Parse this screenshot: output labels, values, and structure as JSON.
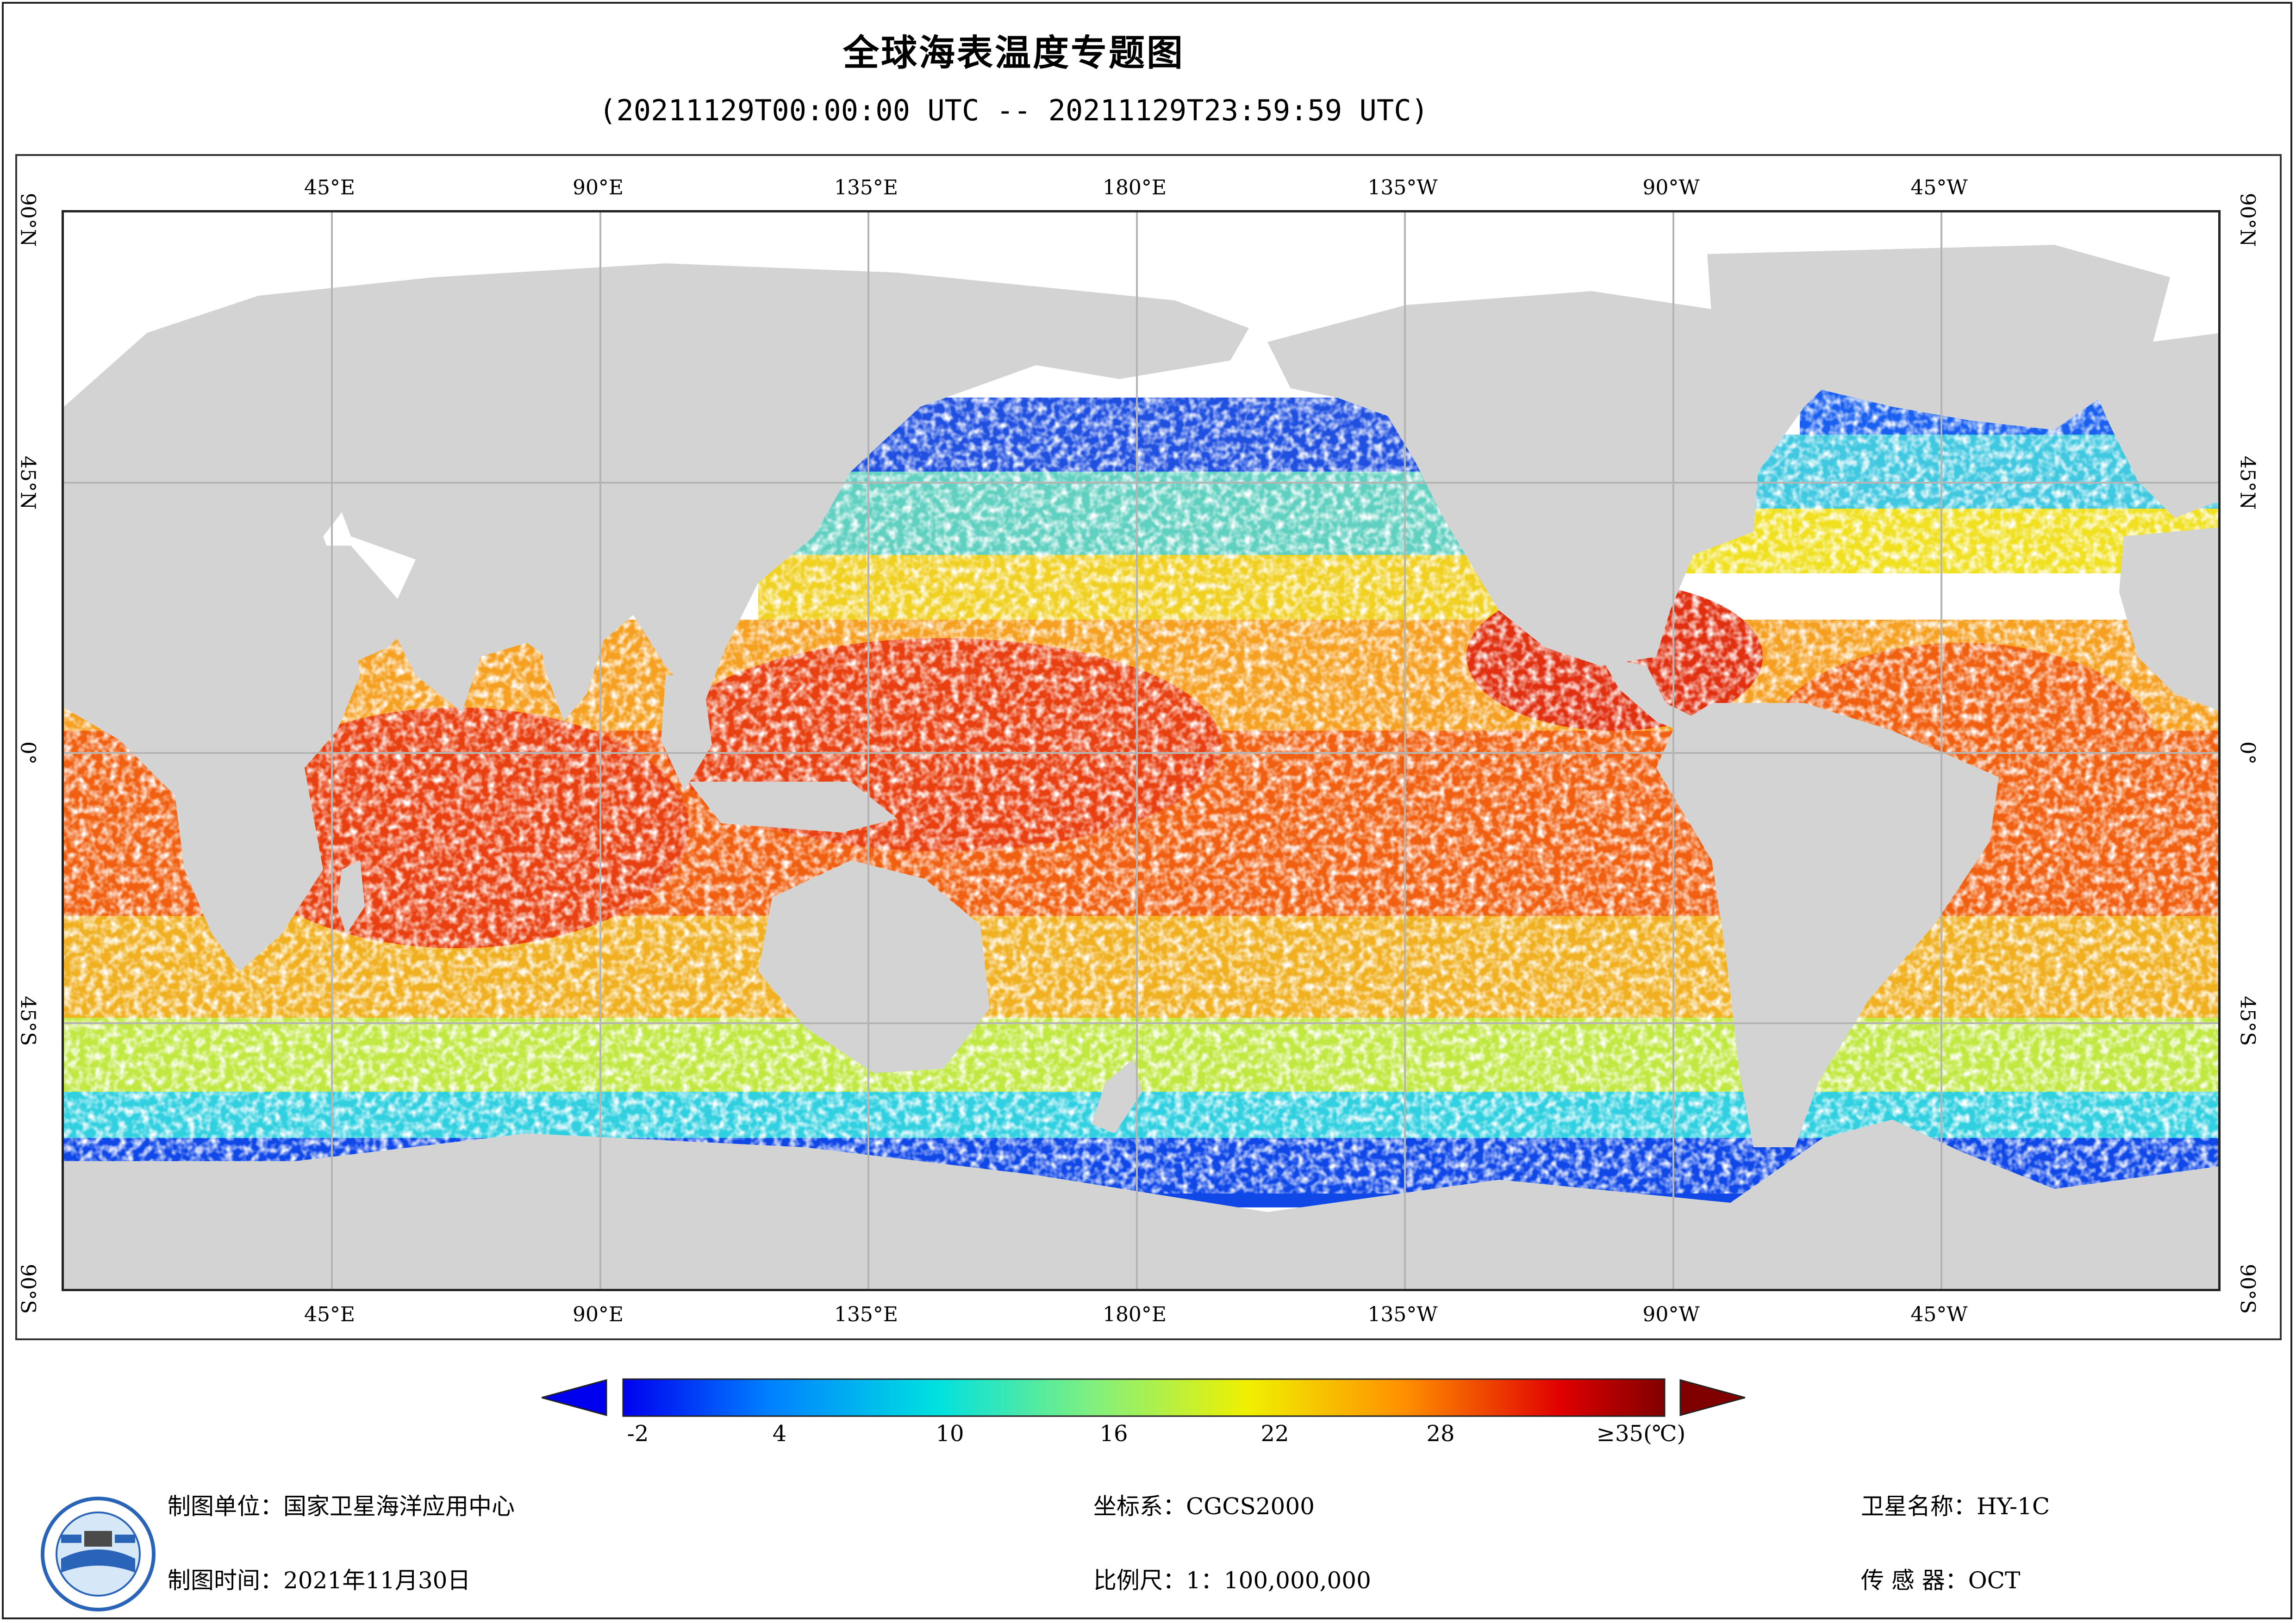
{
  "title": "全球海表温度专题图",
  "subtitle": "(20211129T00:00:00 UTC -- 20211129T23:59:59 UTC)",
  "longitude_labels": [
    "45°E",
    "90°E",
    "135°E",
    "180°E",
    "135°W",
    "90°W",
    "45°W"
  ],
  "latitude_labels": [
    "90°N",
    "45°N",
    "0°",
    "45°S",
    "90°S"
  ],
  "colorbar": {
    "ticks": [
      "-2",
      "4",
      "10",
      "16",
      "22",
      "28",
      "≥35(℃)"
    ],
    "min": -2,
    "max": 35,
    "colors": [
      "#0000ee",
      "#0080ff",
      "#00e0e0",
      "#80f080",
      "#f0f000",
      "#ff9000",
      "#e00000",
      "#800000"
    ]
  },
  "footer": {
    "unit": "制图单位：国家卫星海洋应用中心",
    "time": "制图时间：2021年11月30日",
    "crs": "坐标系：CGCS2000",
    "scale": "比例尺：1：100,000,000",
    "satellite": "卫星名称：HY-1C",
    "sensor": "传 感 器：OCT"
  },
  "colors": {
    "land": "#d3d3d3",
    "grid": "#b4b4b4",
    "no_data": "#ffffff"
  }
}
